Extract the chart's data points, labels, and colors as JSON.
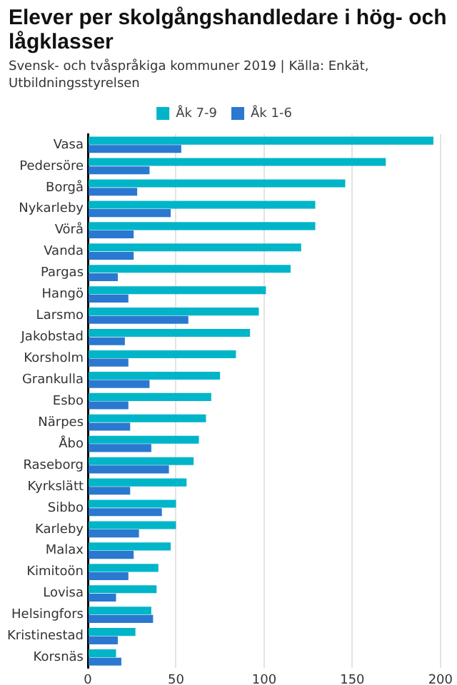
{
  "chart_data": {
    "type": "bar",
    "orientation": "horizontal",
    "title": "Elever per skolgångshandledare i hög- och lågklasser",
    "subtitle": "Svensk- och tvåspråkiga kommuner 2019 | Källa: Enkät, Utbildningsstyrelsen",
    "categories": [
      "Vasa",
      "Pedersöre",
      "Borgå",
      "Nykarleby",
      "Vörå",
      "Vanda",
      "Pargas",
      "Hangö",
      "Larsmo",
      "Jakobstad",
      "Korsholm",
      "Grankulla",
      "Esbo",
      "Närpes",
      "Åbo",
      "Raseborg",
      "Kyrkslätt",
      "Sibbo",
      "Karleby",
      "Malax",
      "Kimitoön",
      "Lovisa",
      "Helsingfors",
      "Kristinestad",
      "Korsnäs"
    ],
    "series": [
      {
        "name": "Åk 7-9",
        "color": "#00b5c8",
        "values": [
          196,
          169,
          146,
          129,
          129,
          121,
          115,
          101,
          97,
          92,
          84,
          75,
          70,
          67,
          63,
          60,
          56,
          50,
          50,
          47,
          40,
          39,
          36,
          27,
          16
        ]
      },
      {
        "name": "Åk 1-6",
        "color": "#2a78d0",
        "values": [
          53,
          35,
          28,
          47,
          26,
          26,
          17,
          23,
          57,
          21,
          23,
          35,
          23,
          24,
          36,
          46,
          24,
          42,
          29,
          26,
          23,
          16,
          37,
          17,
          19
        ]
      }
    ],
    "xlim": [
      0,
      200
    ],
    "xticks": [
      0,
      50,
      100,
      150,
      200
    ],
    "grid": "x",
    "legend": "top"
  }
}
